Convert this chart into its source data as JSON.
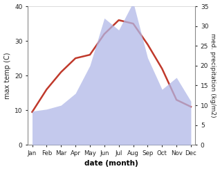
{
  "months": [
    "Jan",
    "Feb",
    "Mar",
    "Apr",
    "May",
    "Jun",
    "Jul",
    "Aug",
    "Sep",
    "Oct",
    "Nov",
    "Dec"
  ],
  "temp": [
    9.5,
    16,
    21,
    25,
    26,
    32,
    36,
    35,
    29,
    22,
    13,
    11
  ],
  "precip": [
    8.5,
    9,
    10,
    13,
    20,
    32,
    29,
    36,
    22,
    14,
    17,
    11
  ],
  "temp_color": "#c0392b",
  "precip_color": "#b0b8e8",
  "title": "",
  "xlabel": "date (month)",
  "ylabel_left": "max temp (C)",
  "ylabel_right": "med. precipitation (kg/m2)",
  "ylim_left": [
    0,
    40
  ],
  "ylim_right": [
    0,
    35
  ],
  "yticks_left": [
    0,
    10,
    20,
    30,
    40
  ],
  "yticks_right": [
    0,
    5,
    10,
    15,
    20,
    25,
    30,
    35
  ],
  "temp_linewidth": 1.8,
  "bg_color": "#ffffff",
  "figsize": [
    3.18,
    2.47
  ],
  "dpi": 100
}
